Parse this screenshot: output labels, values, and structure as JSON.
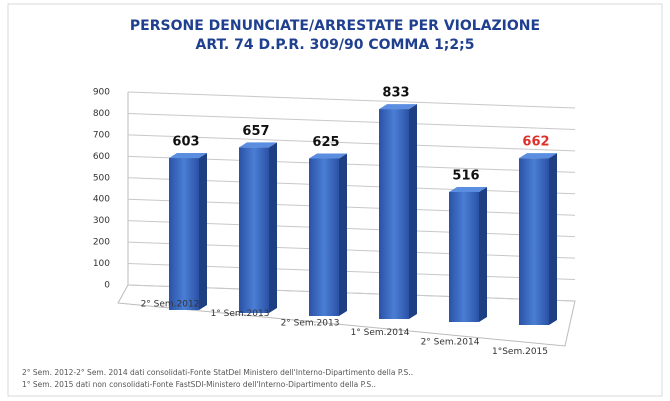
{
  "chart_data": {
    "type": "bar",
    "title": [
      "PERSONE DENUNCIATE/ARRESTATE PER VIOLAZIONE",
      "ART. 74 D.P.R. 309/90 COMMA 1;2;5"
    ],
    "categories": [
      "2° Sem.2012",
      "1° Sem.2013",
      "2° Sem.2013",
      "1° Sem.2014",
      "2° Sem.2014",
      "1°Sem.2015"
    ],
    "values": [
      603,
      657,
      625,
      833,
      516,
      662
    ],
    "color": "#2f5cb0",
    "label_colors": [
      "#111111",
      "#111111",
      "#111111",
      "#111111",
      "#111111",
      "#e0302a"
    ],
    "ylim": [
      0,
      900
    ],
    "yticks": [
      0,
      100,
      200,
      300,
      400,
      500,
      600,
      700,
      800,
      900
    ],
    "grid": true,
    "notes": [
      "2° Sem. 2012-2° Sem. 2014 dati consolidati-Fonte StatDel Ministero dell'Interno-Dipartimento della P.S..",
      "1° Sem. 2015 dati non consolidati-Fonte FastSDI-Ministero dell'Interno-Dipartimento della P.S.."
    ]
  }
}
